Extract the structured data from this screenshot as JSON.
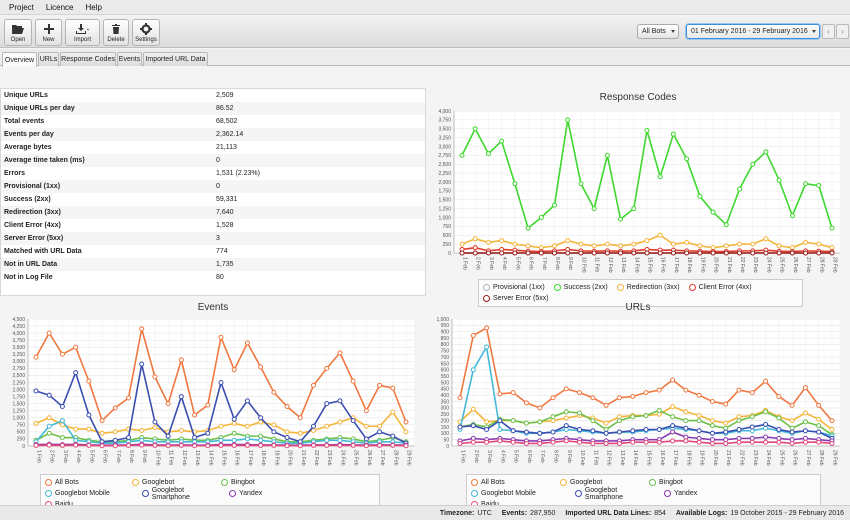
{
  "menu": {
    "items": [
      "Project",
      "Licence",
      "Help"
    ]
  },
  "toolbar": {
    "open": "Open",
    "new": "New",
    "import": "Import",
    "delete": "Delete",
    "settings": "Settings"
  },
  "filters": {
    "bots": "All Bots",
    "date_range": "01 February 2016 - 29 February 2016",
    "prev": "‹",
    "next": "›"
  },
  "tabs": [
    "Overview",
    "URLs",
    "Response Codes",
    "Events",
    "Imported URL Data"
  ],
  "stats": [
    {
      "label": "Unique URLs",
      "value": "2,509"
    },
    {
      "label": "Unique URLs per day",
      "value": "86.52"
    },
    {
      "label": "Total events",
      "value": "68,502"
    },
    {
      "label": "Events per day",
      "value": "2,362.14"
    },
    {
      "label": "Average bytes",
      "value": "21,113"
    },
    {
      "label": "Average time taken (ms)",
      "value": "0"
    },
    {
      "label": "Errors",
      "value": "1,531 (2.23%)"
    },
    {
      "label": "Provisional (1xx)",
      "value": "0"
    },
    {
      "label": "Success (2xx)",
      "value": "59,331"
    },
    {
      "label": "Redirection (3xx)",
      "value": "7,640"
    },
    {
      "label": "Client Error (4xx)",
      "value": "1,528"
    },
    {
      "label": "Server Error (5xx)",
      "value": "3"
    },
    {
      "label": "Matched with URL Data",
      "value": "774"
    },
    {
      "label": "Not in URL Data",
      "value": "1,735"
    },
    {
      "label": "Not in Log File",
      "value": "80"
    }
  ],
  "status": {
    "timezone_label": "Timezone:",
    "timezone": "UTC",
    "events_label": "Events:",
    "events": "287,950",
    "imported_label": "Imported URL Data Lines:",
    "imported": "854",
    "available_label": "Available Logs:",
    "available": "19 October 2015 - 29 February 2016"
  },
  "chart_data": [
    {
      "type": "line",
      "title": "Response Codes",
      "ylim": [
        0,
        4000
      ],
      "yticks": [
        "0",
        "250",
        "500",
        "750",
        "1,000",
        "1,250",
        "1,500",
        "1,750",
        "2,000",
        "2,250",
        "2,500",
        "2,750",
        "3,000",
        "3,250",
        "3,500",
        "3,750",
        "4,000"
      ],
      "categories": [
        "1 Feb",
        "2 Feb",
        "3 Feb",
        "4 Feb",
        "5 Feb",
        "6 Feb",
        "7 Feb",
        "8 Feb",
        "9 Feb",
        "10 Feb",
        "11 Feb",
        "12 Feb",
        "13 Feb",
        "14 Feb",
        "15 Feb",
        "16 Feb",
        "17 Feb",
        "18 Feb",
        "19 Feb",
        "20 Feb",
        "21 Feb",
        "22 Feb",
        "23 Feb",
        "24 Feb",
        "25 Feb",
        "26 Feb",
        "27 Feb",
        "28 Feb",
        "29 Feb"
      ],
      "series": [
        {
          "name": "Provisional (1xx)",
          "color": "#b0b0b0",
          "values": [
            0,
            0,
            0,
            0,
            0,
            0,
            0,
            0,
            0,
            0,
            0,
            0,
            0,
            0,
            0,
            0,
            0,
            0,
            0,
            0,
            0,
            0,
            0,
            0,
            0,
            0,
            0,
            0,
            0
          ]
        },
        {
          "name": "Success (2xx)",
          "color": "#3ed82e",
          "values": [
            2750,
            3500,
            2800,
            3150,
            1950,
            700,
            1000,
            1350,
            3750,
            1950,
            1250,
            2750,
            950,
            1250,
            3450,
            2150,
            3350,
            2650,
            1600,
            1150,
            800,
            1800,
            2500,
            2850,
            2050,
            1050,
            1950,
            1900,
            700
          ]
        },
        {
          "name": "Redirection (3xx)",
          "color": "#f5b43a",
          "values": [
            250,
            400,
            300,
            350,
            250,
            200,
            150,
            200,
            350,
            250,
            200,
            250,
            200,
            250,
            350,
            500,
            250,
            300,
            200,
            150,
            200,
            250,
            250,
            400,
            200,
            150,
            300,
            250,
            150
          ]
        },
        {
          "name": "Client Error (4xx)",
          "color": "#e03a2a",
          "values": [
            100,
            150,
            60,
            100,
            80,
            50,
            40,
            60,
            100,
            60,
            50,
            60,
            50,
            60,
            100,
            80,
            80,
            60,
            50,
            40,
            40,
            60,
            60,
            80,
            50,
            40,
            60,
            50,
            40
          ]
        },
        {
          "name": "Server Error (5xx)",
          "color": "#9a1c1c",
          "values": [
            0,
            0,
            0,
            0,
            0,
            0,
            0,
            0,
            0,
            0,
            0,
            0,
            0,
            0,
            0,
            0,
            0,
            0,
            0,
            0,
            0,
            0,
            0,
            0,
            0,
            0,
            0,
            0,
            0
          ]
        }
      ]
    },
    {
      "type": "line",
      "title": "Events",
      "ylim": [
        0,
        4500
      ],
      "yticks": [
        "0",
        "250",
        "500",
        "750",
        "1,000",
        "1,250",
        "1,500",
        "1,750",
        "2,000",
        "2,250",
        "2,500",
        "2,750",
        "3,000",
        "3,250",
        "3,500",
        "3,750",
        "4,000",
        "4,250",
        "4,500"
      ],
      "categories": [
        "1 Feb",
        "2 Feb",
        "3 Feb",
        "4 Feb",
        "5 Feb",
        "6 Feb",
        "7 Feb",
        "8 Feb",
        "9 Feb",
        "10 Feb",
        "11 Feb",
        "12 Feb",
        "13 Feb",
        "14 Feb",
        "15 Feb",
        "16 Feb",
        "17 Feb",
        "18 Feb",
        "19 Feb",
        "20 Feb",
        "21 Feb",
        "22 Feb",
        "23 Feb",
        "24 Feb",
        "25 Feb",
        "26 Feb",
        "27 Feb",
        "28 Feb",
        "29 Feb"
      ],
      "series": [
        {
          "name": "All Bots",
          "color": "#f07840",
          "values": [
            3150,
            4000,
            3250,
            3500,
            2300,
            900,
            1350,
            1700,
            4150,
            2450,
            1500,
            3050,
            1100,
            1450,
            3850,
            2700,
            3650,
            2800,
            1900,
            1400,
            1000,
            2150,
            2750,
            3300,
            2300,
            1250,
            2150,
            2050,
            850
          ]
        },
        {
          "name": "Googlebot",
          "color": "#f5b43a",
          "values": [
            800,
            1000,
            750,
            600,
            600,
            450,
            500,
            600,
            550,
            650,
            500,
            550,
            500,
            550,
            700,
            800,
            700,
            850,
            750,
            500,
            450,
            550,
            700,
            850,
            1000,
            700,
            700,
            1200,
            500
          ]
        },
        {
          "name": "Bingbot",
          "color": "#6cc04a",
          "values": [
            200,
            450,
            300,
            300,
            200,
            150,
            150,
            200,
            300,
            250,
            200,
            250,
            200,
            200,
            300,
            450,
            350,
            350,
            250,
            150,
            150,
            200,
            250,
            300,
            250,
            150,
            200,
            300,
            150
          ]
        },
        {
          "name": "Googlebot Mobile",
          "color": "#46b8d8",
          "values": [
            150,
            700,
            900,
            200,
            150,
            100,
            100,
            150,
            200,
            150,
            150,
            150,
            150,
            150,
            200,
            200,
            250,
            200,
            150,
            100,
            100,
            150,
            200,
            200,
            150,
            100,
            150,
            150,
            100
          ]
        },
        {
          "name": "Googlebot Smartphone",
          "color": "#3a4eb0",
          "values": [
            1950,
            1800,
            1400,
            2600,
            1100,
            150,
            200,
            300,
            2900,
            850,
            350,
            1750,
            300,
            450,
            2250,
            950,
            1600,
            1000,
            500,
            300,
            150,
            700,
            1500,
            1600,
            900,
            250,
            500,
            350,
            100
          ]
        },
        {
          "name": "Yandex",
          "color": "#8a3ab0",
          "values": [
            50,
            60,
            50,
            60,
            40,
            30,
            30,
            40,
            60,
            40,
            30,
            40,
            30,
            30,
            50,
            50,
            50,
            40,
            40,
            30,
            30,
            40,
            40,
            50,
            40,
            30,
            40,
            40,
            30
          ]
        },
        {
          "name": "Baidu",
          "color": "#e0487a",
          "values": [
            20,
            30,
            20,
            30,
            20,
            10,
            10,
            20,
            30,
            20,
            10,
            20,
            10,
            10,
            20,
            20,
            20,
            20,
            20,
            10,
            10,
            20,
            20,
            20,
            20,
            10,
            20,
            20,
            10
          ]
        }
      ]
    },
    {
      "type": "line",
      "title": "URLs",
      "ylim": [
        0,
        1000
      ],
      "yticks": [
        "0",
        "50",
        "100",
        "150",
        "200",
        "250",
        "300",
        "350",
        "400",
        "450",
        "500",
        "550",
        "600",
        "650",
        "700",
        "750",
        "800",
        "850",
        "900",
        "950",
        "1,000"
      ],
      "categories": [
        "1 Feb",
        "2 Feb",
        "3 Feb",
        "4 Feb",
        "5 Feb",
        "6 Feb",
        "7 Feb",
        "8 Feb",
        "9 Feb",
        "10 Feb",
        "11 Feb",
        "12 Feb",
        "13 Feb",
        "14 Feb",
        "15 Feb",
        "16 Feb",
        "17 Feb",
        "18 Feb",
        "19 Feb",
        "20 Feb",
        "21 Feb",
        "22 Feb",
        "23 Feb",
        "24 Feb",
        "25 Feb",
        "26 Feb",
        "27 Feb",
        "28 Feb",
        "29 Feb"
      ],
      "series": [
        {
          "name": "All Bots",
          "color": "#f07840",
          "values": [
            380,
            870,
            930,
            410,
            420,
            340,
            300,
            380,
            450,
            420,
            380,
            320,
            380,
            390,
            420,
            440,
            520,
            440,
            400,
            350,
            330,
            440,
            420,
            510,
            390,
            320,
            460,
            320,
            200
          ]
        },
        {
          "name": "Googlebot",
          "color": "#f5b43a",
          "values": [
            190,
            290,
            190,
            200,
            200,
            180,
            190,
            200,
            220,
            240,
            220,
            180,
            230,
            240,
            240,
            250,
            310,
            270,
            240,
            200,
            180,
            230,
            240,
            280,
            230,
            200,
            260,
            210,
            130
          ]
        },
        {
          "name": "Bingbot",
          "color": "#6cc04a",
          "values": [
            150,
            170,
            150,
            210,
            200,
            180,
            190,
            230,
            270,
            260,
            200,
            130,
            200,
            230,
            240,
            280,
            230,
            200,
            200,
            160,
            140,
            200,
            230,
            270,
            220,
            140,
            190,
            160,
            90
          ]
        },
        {
          "name": "Googlebot Mobile",
          "color": "#46b8d8",
          "values": [
            130,
            600,
            780,
            130,
            120,
            100,
            100,
            110,
            130,
            120,
            110,
            100,
            110,
            110,
            120,
            130,
            140,
            130,
            120,
            100,
            100,
            120,
            120,
            140,
            120,
            100,
            120,
            110,
            80
          ]
        },
        {
          "name": "Googlebot Smartphone",
          "color": "#3a4eb0",
          "values": [
            150,
            160,
            130,
            200,
            120,
            110,
            100,
            110,
            160,
            130,
            120,
            100,
            110,
            120,
            130,
            130,
            160,
            140,
            120,
            100,
            110,
            130,
            150,
            170,
            130,
            110,
            120,
            110,
            60
          ]
        },
        {
          "name": "Yandex",
          "color": "#8a3ab0",
          "values": [
            40,
            60,
            50,
            60,
            50,
            40,
            40,
            50,
            60,
            50,
            40,
            40,
            40,
            50,
            50,
            50,
            110,
            70,
            60,
            50,
            50,
            60,
            60,
            70,
            60,
            50,
            60,
            50,
            40
          ]
        },
        {
          "name": "Baidu",
          "color": "#e0487a",
          "values": [
            20,
            30,
            30,
            40,
            30,
            20,
            20,
            30,
            40,
            30,
            20,
            20,
            20,
            30,
            30,
            30,
            40,
            40,
            30,
            20,
            20,
            30,
            30,
            30,
            30,
            20,
            30,
            30,
            20
          ]
        }
      ]
    }
  ]
}
